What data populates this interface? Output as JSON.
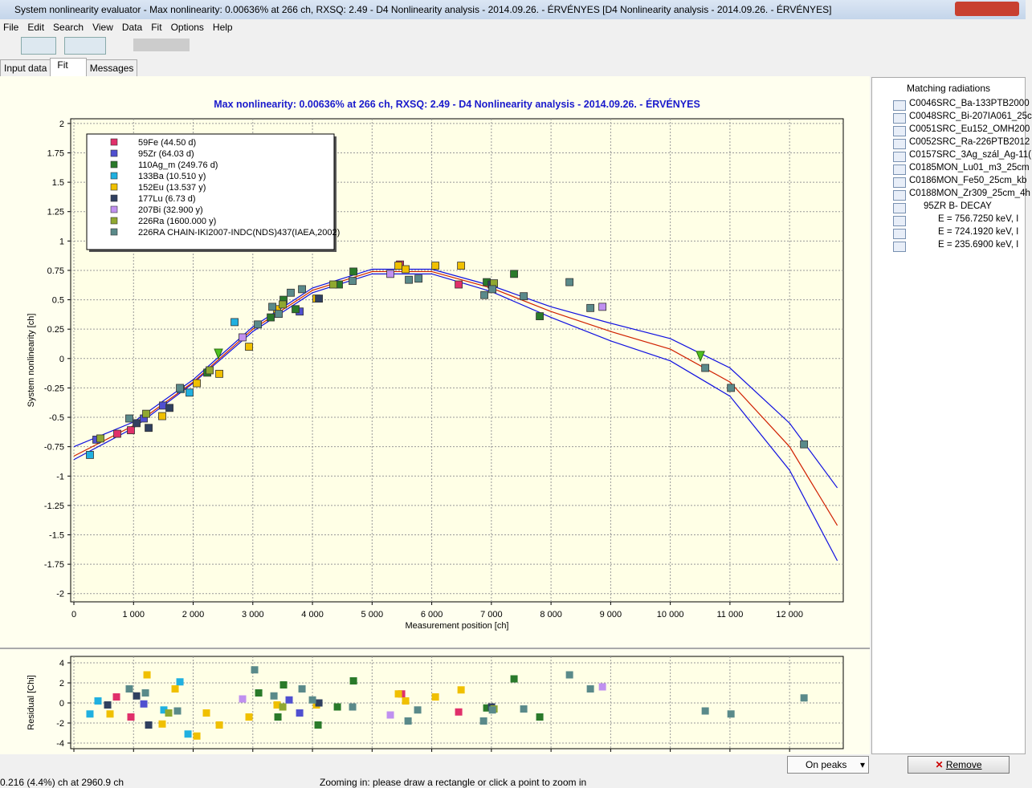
{
  "window": {
    "title": "System nonlinearity evaluator - Max nonlinearity: 0.00636% at 266 ch, RXSQ: 2.49 - D4 Nonlinearity analysis - 2014.09.26. - ÉRVÉNYES [D4 Nonlinearity analysis - 2014.09.26. - ÉRVÉNYES]"
  },
  "menu": [
    "File",
    "Edit",
    "Search",
    "View",
    "Data",
    "Fit",
    "Options",
    "Help"
  ],
  "tabs": [
    "Input data",
    "Fit",
    "Messages"
  ],
  "side_panel": {
    "title": "Matching radiations",
    "items": [
      "C0046SRC_Ba-133PTB2000",
      "C0048SRC_Bi-207IA061_25c",
      "C0051SRC_Eu152_OMH200",
      "C0052SRC_Ra-226PTB2012",
      "C0157SRC_3Ag_szál_Ag-11(",
      "C0185MON_Lu01_m3_25cm",
      "C0186MON_Fe50_25cm_kb",
      "C0188MON_Zr309_25cm_4h"
    ],
    "decay": "95ZR B- DECAY",
    "lines": [
      "E = 756.7250 keV, I",
      "E = 724.1920 keV, I",
      "E = 235.6900 keV, I"
    ],
    "button": "Remove"
  },
  "controls": {
    "dropdown": "On peaks"
  },
  "status_bar": [
    "0.216 (4.4%) ch at 2960.9 ch",
    "Zooming in: please draw a rectangle or click a point to zoom in"
  ],
  "chart_data": [
    {
      "type": "scatter",
      "title": "Max nonlinearity: 0.00636% at 266 ch, RXSQ: 2.49 - D4 Nonlinearity analysis - 2014.09.26. - ÉRVÉNYES",
      "xlabel": "Measurement position [ch]",
      "ylabel": "System nonlinearity [ch]",
      "grid": true,
      "legend": "top-left",
      "xlim": [
        -54,
        12900
      ],
      "ylim": [
        -2.07,
        2.04
      ],
      "xticks": [
        0,
        {
          "value": 1000,
          "label": "1 000"
        },
        {
          "value": 2000,
          "label": "2 000"
        },
        {
          "value": 3000,
          "label": "3 000"
        },
        {
          "value": 4000,
          "label": "4 000"
        },
        {
          "value": 5000,
          "label": "5 000"
        },
        {
          "value": 6000,
          "label": "6 000"
        },
        {
          "value": 7000,
          "label": "7 000"
        },
        {
          "value": 8000,
          "label": "8 000"
        },
        {
          "value": 9000,
          "label": "9 000"
        },
        {
          "value": 10000,
          "label": "10 000"
        },
        {
          "value": 11000,
          "label": "11 000"
        },
        {
          "value": 12000,
          "label": "12 000"
        }
      ],
      "yticks": [
        2,
        1.75,
        1.5,
        1.25,
        1,
        0.75,
        0.5,
        0.25,
        0,
        -0.25,
        -0.5,
        -0.75,
        -1,
        -1.25,
        -1.5,
        -1.75,
        -2
      ],
      "series": [
        {
          "name": "59Fe (44.50 d)",
          "color": "#e0306a",
          "x": [
            727,
            956,
            5468,
            6451
          ],
          "values": [
            -0.64,
            -0.61,
            0.8,
            0.63
          ]
        },
        {
          "name": "95Zr (64.03 d)",
          "color": "#5050d0",
          "x": [
            377,
            1172,
            1495,
            3785
          ],
          "values": [
            -0.69,
            -0.51,
            -0.4,
            0.4
          ]
        },
        {
          "name": "110Ag_m (249.76 d)",
          "color": "#2a7a2a",
          "x": [
            2236,
            3300,
            3515,
            3717,
            4444,
            4687,
            6922,
            7380,
            7811
          ],
          "values": [
            -0.12,
            0.35,
            0.5,
            0.42,
            0.63,
            0.74,
            0.65,
            0.72,
            0.36
          ]
        },
        {
          "name": "133Ba (10.510 y)",
          "color": "#20b0e0",
          "x": [
            269,
            1791,
            1939,
            2694
          ],
          "values": [
            -0.82,
            -0.26,
            -0.29,
            0.31
          ]
        },
        {
          "name": "152Eu (13.537 y)",
          "color": "#f0c000",
          "x": [
            1481,
            2061,
            2438,
            2936,
            3407,
            4067,
            5441,
            5562,
            6061,
            6492
          ],
          "values": [
            -0.49,
            -0.21,
            -0.13,
            0.1,
            0.42,
            0.51,
            0.79,
            0.76,
            0.79,
            0.79
          ]
        },
        {
          "name": "177Lu (6.73 d)",
          "color": "#304060",
          "x": [
            1051,
            1253,
            1603,
            4108,
            7003
          ],
          "values": [
            -0.55,
            -0.59,
            -0.42,
            0.51,
            0.63
          ]
        },
        {
          "name": "207Bi (32.900 y)",
          "color": "#c090f0",
          "x": [
            2828,
            5306,
            8862
          ],
          "values": [
            0.18,
            0.72,
            0.44
          ]
        },
        {
          "name": "226Ra (1600.000 y)",
          "color": "#90a830",
          "x": [
            444,
            1212,
            2276,
            3502,
            4350,
            7044
          ],
          "values": [
            -0.68,
            -0.47,
            -0.1,
            0.46,
            0.63,
            0.64
          ]
        },
        {
          "name": "226RA CHAIN-IKI2007-INDC(NDS)437(IAEA,2002)",
          "color": "#5a8a8a",
          "x": [
            929,
            1778,
            3084,
            3327,
            3434,
            3636,
            3825,
            4673,
            5616,
            5778,
            6882,
            7017,
            7542,
            8310,
            8660,
            10586,
            11017,
            12242
          ],
          "values": [
            -0.51,
            -0.25,
            0.29,
            0.44,
            0.38,
            0.56,
            0.59,
            0.66,
            0.67,
            0.68,
            0.54,
            0.59,
            0.53,
            0.65,
            0.43,
            -0.08,
            -0.25,
            -0.73
          ]
        }
      ],
      "markers": {
        "color": "#50c020",
        "x": [
          2424,
          10505
        ],
        "values": [
          0.04,
          0.02
        ]
      },
      "curves": [
        {
          "color": "#1010e0",
          "x": [
            0,
            1000,
            2000,
            3000,
            4000,
            5000,
            6000,
            7000,
            8000,
            9000,
            10000,
            11000,
            12000,
            12800
          ],
          "values": [
            -0.75,
            -0.54,
            -0.18,
            0.27,
            0.6,
            0.76,
            0.76,
            0.62,
            0.44,
            0.3,
            0.17,
            -0.08,
            -0.55,
            -1.1
          ]
        },
        {
          "color": "#1010e0",
          "x": [
            0,
            1000,
            2000,
            3000,
            4000,
            5000,
            6000,
            7000,
            8000,
            9000,
            10000,
            11000,
            12000,
            12800
          ],
          "values": [
            -0.86,
            -0.59,
            -0.21,
            0.23,
            0.56,
            0.72,
            0.72,
            0.57,
            0.35,
            0.15,
            -0.02,
            -0.32,
            -0.95,
            -1.72
          ]
        },
        {
          "color": "#d02000",
          "x": [
            0,
            1000,
            2000,
            3000,
            4000,
            5000,
            6000,
            7000,
            8000,
            9000,
            10000,
            11000,
            12000,
            12800
          ],
          "values": [
            -0.83,
            -0.57,
            -0.2,
            0.25,
            0.58,
            0.74,
            0.74,
            0.6,
            0.4,
            0.23,
            0.08,
            -0.2,
            -0.75,
            -1.42
          ]
        }
      ]
    },
    {
      "type": "scatter",
      "ylabel": "Residual [Chi]",
      "grid": true,
      "xtick_labels": false,
      "xlim": [
        -54,
        12900
      ],
      "ylim": [
        -4.56,
        4.64
      ],
      "xticks": [
        0,
        1000,
        2000,
        3000,
        4000,
        5000,
        6000,
        7000,
        8000,
        9000,
        10000,
        11000,
        12000
      ],
      "yticks": [
        4,
        2,
        0,
        -2,
        -4
      ],
      "series": [
        {
          "color": "#e0306a",
          "x": [
            714,
            956,
            5495,
            6451
          ],
          "values": [
            0.6,
            -1.4,
            0.9,
            -0.9
          ]
        },
        {
          "color": "#5050d0",
          "x": [
            1172,
            3609,
            3785
          ],
          "values": [
            -0.1,
            0.3,
            -1
          ]
        },
        {
          "color": "#2a7a2a",
          "x": [
            3098,
            3421,
            3515,
            4094,
            4418,
            4687,
            6922,
            7380,
            7811
          ],
          "values": [
            1,
            -1.4,
            1.8,
            -2.2,
            -0.4,
            2.2,
            -0.5,
            2.4,
            -1.4
          ]
        },
        {
          "color": "#20b0e0",
          "x": [
            269,
            404,
            1508,
            1778,
            1913
          ],
          "values": [
            -1.1,
            0.2,
            -0.7,
            2.1,
            -3.1
          ]
        },
        {
          "color": "#f0c000",
          "x": [
            606,
            1226,
            1481,
            1697,
            2061,
            2222,
            2438,
            2936,
            3407,
            4067,
            5441,
            5562,
            6061,
            6492
          ],
          "values": [
            -1.1,
            2.8,
            -2.1,
            1.4,
            -3.3,
            -1,
            -2.2,
            -1.4,
            -0.2,
            -0.2,
            0.9,
            0.2,
            0.6,
            1.3
          ]
        },
        {
          "color": "#304060",
          "x": [
            566,
            1051,
            1253,
            4108,
            7003
          ],
          "values": [
            -0.2,
            0.7,
            -2.2,
            0,
            -0.4
          ]
        },
        {
          "color": "#c090f0",
          "x": [
            2828,
            5306,
            8862
          ],
          "values": [
            0.4,
            -1.2,
            1.6
          ]
        },
        {
          "color": "#90a830",
          "x": [
            1589,
            3502,
            7044
          ],
          "values": [
            -1,
            -0.4,
            -0.6
          ]
        },
        {
          "color": "#5a8a8a",
          "x": [
            929,
            1199,
            1737,
            3030,
            3354,
            3825,
            4000,
            4673,
            5603,
            5764,
            6869,
            7017,
            7542,
            8310,
            8660,
            10586,
            11017,
            12242
          ],
          "values": [
            1.4,
            1,
            -0.8,
            3.3,
            0.7,
            1.4,
            0.3,
            -0.4,
            -1.8,
            -0.7,
            -1.8,
            -0.7,
            -0.6,
            2.8,
            1.4,
            -0.8,
            -1.1,
            0.5
          ]
        }
      ]
    }
  ]
}
